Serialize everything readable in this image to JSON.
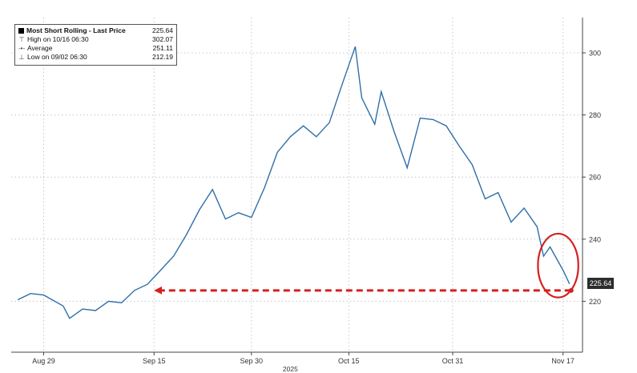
{
  "legend": {
    "title": "Most Short Rolling - Last Price",
    "last": "225.64",
    "high_label": "High on 10/16 06:30",
    "high_value": "302.07",
    "avg_label": "Average",
    "avg_value": "251.11",
    "low_label": "Low on 09/02 06:30",
    "low_value": "212.19"
  },
  "last_price_badge": "225.64",
  "colors": {
    "line": "#2f6fa8",
    "annotation": "#d42020",
    "grid": "#c8c8c8",
    "axis": "#444444"
  },
  "chart_data": {
    "type": "line",
    "title": "Most Short Rolling - Last Price",
    "x_tick_labels": [
      "Aug 29",
      "Sep 15",
      "Sep 30",
      "Oct 15",
      "Oct 31",
      "Nov 17"
    ],
    "x_year_label": "2025",
    "y_tick_labels": [
      "300",
      "280",
      "260",
      "240",
      "220"
    ],
    "ylim": [
      210,
      310
    ],
    "grid": true,
    "legend_position": "top-left",
    "y_axis_side": "right",
    "series": [
      {
        "name": "Most Short Rolling - Last Price",
        "x": [
          "2025-08-25",
          "2025-08-27",
          "2025-08-29",
          "2025-09-01",
          "2025-09-02",
          "2025-09-04",
          "2025-09-06",
          "2025-09-08",
          "2025-09-10",
          "2025-09-12",
          "2025-09-14",
          "2025-09-16",
          "2025-09-18",
          "2025-09-20",
          "2025-09-22",
          "2025-09-24",
          "2025-09-26",
          "2025-09-28",
          "2025-09-30",
          "2025-10-02",
          "2025-10-04",
          "2025-10-06",
          "2025-10-08",
          "2025-10-10",
          "2025-10-12",
          "2025-10-14",
          "2025-10-16",
          "2025-10-17",
          "2025-10-19",
          "2025-10-20",
          "2025-10-22",
          "2025-10-24",
          "2025-10-26",
          "2025-10-28",
          "2025-10-30",
          "2025-11-01",
          "2025-11-03",
          "2025-11-05",
          "2025-11-07",
          "2025-11-09",
          "2025-11-11",
          "2025-11-13",
          "2025-11-14",
          "2025-11-15",
          "2025-11-17",
          "2025-11-18"
        ],
        "values": [
          220.5,
          222.5,
          222.0,
          218.5,
          214.5,
          217.5,
          217.0,
          220.0,
          219.5,
          223.5,
          225.5,
          230.0,
          234.5,
          241.5,
          249.5,
          256.0,
          246.5,
          248.5,
          247.0,
          256.5,
          268.0,
          273.0,
          276.5,
          273.0,
          277.5,
          290.0,
          302.0,
          285.5,
          277.0,
          287.5,
          274.5,
          263.0,
          279.0,
          278.5,
          276.5,
          270.0,
          264.0,
          253.0,
          255.0,
          245.5,
          250.0,
          244.0,
          234.5,
          237.5,
          230.0,
          225.6
        ]
      }
    ],
    "annotations": [
      {
        "type": "horizontal-arrow",
        "from_date": "2025-11-18",
        "to_date": "2025-09-14",
        "value": 223.5,
        "style": "dashed"
      },
      {
        "type": "ellipse-highlight",
        "date_range": [
          "2025-11-14",
          "2025-11-18"
        ],
        "value_range": [
          222,
          241
        ]
      }
    ]
  }
}
